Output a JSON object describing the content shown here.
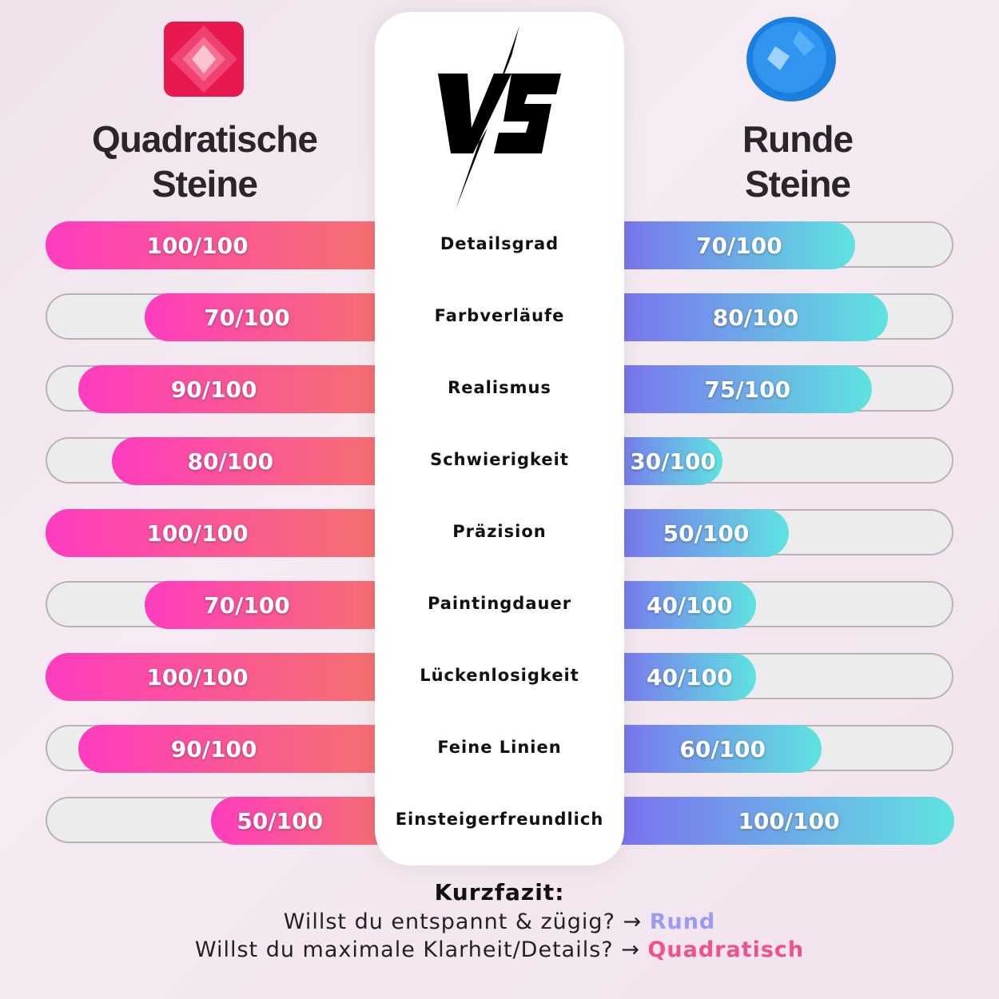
{
  "left": {
    "title_line1": "Quadratische",
    "title_line2": "Steine",
    "icon": "pink-square-gem-icon",
    "color_from": "#ff3cbf",
    "color_to": "#f5736a"
  },
  "right": {
    "title_line1": "Runde",
    "title_line2": "Steine",
    "icon": "blue-round-gem-icon",
    "color_from": "#7b6ef0",
    "color_to": "#5fe3e0"
  },
  "vs_label": "VS",
  "chart_data": {
    "type": "bar",
    "categories": [
      "Detailsgrad",
      "Farbverläufe",
      "Realismus",
      "Schwierigkeit",
      "Präzision",
      "Paintingdauer",
      "Lückenlosigkeit",
      "Feine Linien",
      "Einsteigerfreundlich"
    ],
    "max": 100,
    "series": [
      {
        "name": "Quadratische Steine",
        "values": [
          100,
          70,
          90,
          80,
          100,
          70,
          100,
          90,
          50
        ],
        "labels": [
          "100/100",
          "70/100",
          "90/100",
          "80/100",
          "100/100",
          "70/100",
          "100/100",
          "90/100",
          "50/100"
        ]
      },
      {
        "name": "Runde Steine",
        "values": [
          70,
          80,
          75,
          30,
          50,
          40,
          40,
          60,
          100
        ],
        "labels": [
          "70/100",
          "80/100",
          "75/100",
          "30/100",
          "50/100",
          "40/100",
          "40/100",
          "60/100",
          "100/100"
        ]
      }
    ]
  },
  "summary": {
    "heading": "Kurzfazit:",
    "line1": "Willst du entspannt & zügig? →",
    "line1_answer": "Rund",
    "line2": "Willst du maximale Klarheit/Details? →",
    "line2_answer": "Quadratisch"
  }
}
